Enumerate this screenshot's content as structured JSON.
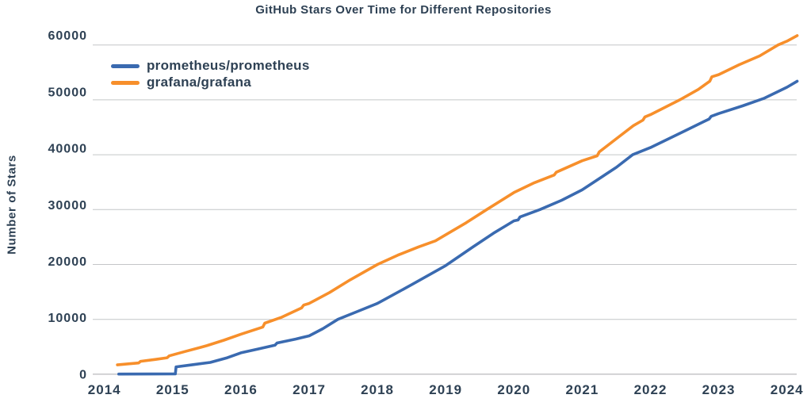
{
  "title": "GitHub Stars Over Time for Different Repositories",
  "y_axis_label": "Number of Stars",
  "palette": {
    "text": "#2e4154",
    "gridline": "#c4c6c8",
    "axisline": "#a6a9ac",
    "background": "#ffffff"
  },
  "legend": {
    "position": "top-left",
    "items": [
      {
        "label": "prometheus/prometheus",
        "color": "#3a6ab0"
      },
      {
        "label": "grafana/grafana",
        "color": "#f78f2b"
      }
    ]
  },
  "chart_data": {
    "type": "line",
    "title": "GitHub Stars Over Time for Different Repositories",
    "xlabel": "",
    "ylabel": "Number of Stars",
    "xlim": [
      2013.83,
      2024.17
    ],
    "ylim": [
      0,
      62000
    ],
    "grid": "horizontal",
    "legend_position": "top-left",
    "x_ticks": [
      {
        "value": 2014,
        "label": "2014"
      },
      {
        "value": 2015,
        "label": "2015"
      },
      {
        "value": 2016,
        "label": "2016"
      },
      {
        "value": 2017,
        "label": "2017"
      },
      {
        "value": 2018,
        "label": "2018"
      },
      {
        "value": 2019,
        "label": "2019"
      },
      {
        "value": 2020,
        "label": "2020"
      },
      {
        "value": 2021,
        "label": "2021"
      },
      {
        "value": 2022,
        "label": "2022"
      },
      {
        "value": 2023,
        "label": "2023"
      },
      {
        "value": 2024,
        "label": "2024"
      }
    ],
    "y_ticks": [
      {
        "value": 0,
        "label": "0"
      },
      {
        "value": 10000,
        "label": "10000"
      },
      {
        "value": 20000,
        "label": "20000"
      },
      {
        "value": 30000,
        "label": "30000"
      },
      {
        "value": 40000,
        "label": "40000"
      },
      {
        "value": 50000,
        "label": "50000"
      },
      {
        "value": 60000,
        "label": "60000"
      }
    ],
    "series": [
      {
        "name": "prometheus/prometheus",
        "color": "#3a6ab0",
        "points": [
          [
            2014.21,
            30
          ],
          [
            2014.7,
            40
          ],
          [
            2015.04,
            60
          ],
          [
            2015.05,
            1350
          ],
          [
            2015.3,
            1750
          ],
          [
            2015.55,
            2150
          ],
          [
            2015.8,
            3000
          ],
          [
            2016.0,
            3900
          ],
          [
            2016.25,
            4600
          ],
          [
            2016.5,
            5300
          ],
          [
            2016.53,
            5700
          ],
          [
            2016.8,
            6400
          ],
          [
            2017.0,
            7000
          ],
          [
            2017.2,
            8300
          ],
          [
            2017.42,
            10000
          ],
          [
            2017.7,
            11400
          ],
          [
            2018.0,
            12900
          ],
          [
            2018.5,
            16300
          ],
          [
            2019.0,
            19800
          ],
          [
            2019.4,
            23200
          ],
          [
            2019.7,
            25700
          ],
          [
            2020.0,
            27950
          ],
          [
            2020.06,
            28100
          ],
          [
            2020.09,
            28650
          ],
          [
            2020.38,
            30000
          ],
          [
            2020.7,
            31700
          ],
          [
            2021.0,
            33600
          ],
          [
            2021.5,
            37700
          ],
          [
            2021.74,
            40000
          ],
          [
            2022.0,
            41300
          ],
          [
            2022.5,
            44300
          ],
          [
            2022.86,
            46500
          ],
          [
            2022.89,
            47000
          ],
          [
            2023.0,
            47500
          ],
          [
            2023.35,
            48900
          ],
          [
            2023.67,
            50300
          ],
          [
            2024.0,
            52300
          ],
          [
            2024.15,
            53400
          ]
        ]
      },
      {
        "name": "grafana/grafana",
        "color": "#f78f2b",
        "points": [
          [
            2014.19,
            1700
          ],
          [
            2014.35,
            1900
          ],
          [
            2014.5,
            2050
          ],
          [
            2014.53,
            2350
          ],
          [
            2014.75,
            2700
          ],
          [
            2014.92,
            3000
          ],
          [
            2014.95,
            3350
          ],
          [
            2015.2,
            4200
          ],
          [
            2015.5,
            5200
          ],
          [
            2015.75,
            6200
          ],
          [
            2016.0,
            7300
          ],
          [
            2016.32,
            8600
          ],
          [
            2016.35,
            9300
          ],
          [
            2016.6,
            10400
          ],
          [
            2016.89,
            12100
          ],
          [
            2016.92,
            12600
          ],
          [
            2017.0,
            12900
          ],
          [
            2017.3,
            14900
          ],
          [
            2017.6,
            17200
          ],
          [
            2018.0,
            20000
          ],
          [
            2018.3,
            21700
          ],
          [
            2018.6,
            23200
          ],
          [
            2018.85,
            24300
          ],
          [
            2019.0,
            25400
          ],
          [
            2019.3,
            27600
          ],
          [
            2019.6,
            30000
          ],
          [
            2020.0,
            33100
          ],
          [
            2020.3,
            34900
          ],
          [
            2020.59,
            36300
          ],
          [
            2020.62,
            36800
          ],
          [
            2021.0,
            38900
          ],
          [
            2021.22,
            39800
          ],
          [
            2021.25,
            40500
          ],
          [
            2021.53,
            43200
          ],
          [
            2021.75,
            45300
          ],
          [
            2021.89,
            46300
          ],
          [
            2021.92,
            46900
          ],
          [
            2022.0,
            47300
          ],
          [
            2022.43,
            50000
          ],
          [
            2022.7,
            51900
          ],
          [
            2022.87,
            53400
          ],
          [
            2022.9,
            54200
          ],
          [
            2023.0,
            54600
          ],
          [
            2023.3,
            56400
          ],
          [
            2023.6,
            58000
          ],
          [
            2023.87,
            60000
          ],
          [
            2024.0,
            60700
          ],
          [
            2024.15,
            61700
          ]
        ]
      }
    ]
  }
}
